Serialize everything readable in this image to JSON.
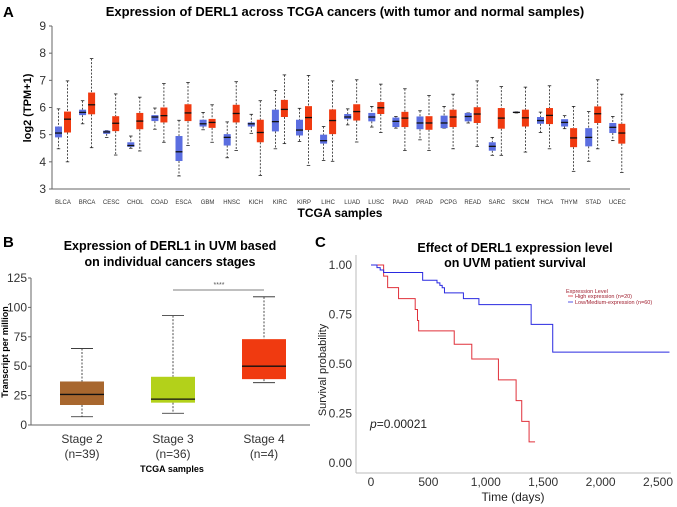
{
  "panel_labels": {
    "a": "A",
    "b": "B",
    "c": "C"
  },
  "chart_data": [
    {
      "type": "box",
      "title": "Expression of DERL1 across TCGA cancers (with tumor and normal samples)",
      "xlabel": "TCGA samples",
      "ylabel": "log2 (TPM+1)",
      "ylim": [
        3,
        9
      ],
      "yticks": [
        3,
        4,
        5,
        6,
        7,
        8,
        9
      ],
      "colors": {
        "normal": "#5b6ee0",
        "tumor": "#f03a10"
      },
      "box_stats_order": [
        "min",
        "q1",
        "median",
        "q3",
        "max"
      ],
      "categories": [
        "BLCA",
        "BRCA",
        "CESC",
        "CHOL",
        "COAD",
        "ESCA",
        "GBM",
        "HNSC",
        "KICH",
        "KIRC",
        "KIRP",
        "LIHC",
        "LUAD",
        "LUSC",
        "PAAD",
        "PRAD",
        "PCPG",
        "READ",
        "SARC",
        "SKCM",
        "THCA",
        "THYM",
        "STAD",
        "UCEC"
      ],
      "normal": [
        [
          4.48,
          4.9,
          5.06,
          5.3,
          5.95
        ],
        [
          5.4,
          5.72,
          5.82,
          5.92,
          6.25
        ],
        [
          4.9,
          5.03,
          5.1,
          5.15,
          5.15
        ],
        [
          4.5,
          4.55,
          4.6,
          4.72,
          4.95
        ],
        [
          5.2,
          5.5,
          5.65,
          5.72,
          5.98
        ],
        [
          3.48,
          4.03,
          4.37,
          4.95,
          5.53
        ],
        [
          5.18,
          5.3,
          5.4,
          5.55,
          5.82
        ],
        [
          4.15,
          4.6,
          4.9,
          5.02,
          5.47
        ],
        [
          5.05,
          5.3,
          5.4,
          5.45,
          5.75
        ],
        [
          4.48,
          5.12,
          5.48,
          5.92,
          6.62
        ],
        [
          4.75,
          4.97,
          5.17,
          5.55,
          5.97
        ],
        [
          4.05,
          4.67,
          4.78,
          5.0,
          5.3
        ],
        [
          5.36,
          5.57,
          5.65,
          5.76,
          5.95
        ],
        [
          5.28,
          5.49,
          5.65,
          5.8,
          6.04
        ],
        [
          5.24,
          5.28,
          5.49,
          5.63,
          5.67
        ],
        [
          4.81,
          5.2,
          5.43,
          5.67,
          5.88
        ],
        [
          5.24,
          5.24,
          5.43,
          5.7,
          6.04
        ],
        [
          5.43,
          5.49,
          5.67,
          5.8,
          5.8
        ],
        [
          4.24,
          4.41,
          4.57,
          4.72,
          4.9
        ],
        [
          5.8,
          5.8,
          5.82,
          5.84,
          5.84
        ],
        [
          5.08,
          5.4,
          5.52,
          5.65,
          5.83
        ],
        [
          5.22,
          5.3,
          5.45,
          5.57,
          5.7
        ],
        [
          4.02,
          4.57,
          4.9,
          5.24,
          5.85
        ],
        [
          4.78,
          5.06,
          5.27,
          5.43,
          5.67
        ]
      ],
      "tumor": [
        [
          4.0,
          5.08,
          5.57,
          5.85,
          6.98
        ],
        [
          4.52,
          5.75,
          6.1,
          6.55,
          7.8
        ],
        [
          4.25,
          5.13,
          5.42,
          5.68,
          6.5
        ],
        [
          4.4,
          5.2,
          5.5,
          5.8,
          6.38
        ],
        [
          4.72,
          5.45,
          5.7,
          6.0,
          6.88
        ],
        [
          4.6,
          5.5,
          5.8,
          6.12,
          6.92
        ],
        [
          4.72,
          5.25,
          5.45,
          5.58,
          6.1
        ],
        [
          4.42,
          5.45,
          5.78,
          6.1,
          6.95
        ],
        [
          3.5,
          4.72,
          5.08,
          5.55,
          6.25
        ],
        [
          4.67,
          5.65,
          5.93,
          6.28,
          7.2
        ],
        [
          3.87,
          5.17,
          5.63,
          6.05,
          7.18
        ],
        [
          4.02,
          5.02,
          5.52,
          5.93,
          6.98
        ],
        [
          4.73,
          5.52,
          5.85,
          6.12,
          7.02
        ],
        [
          5.08,
          5.76,
          5.99,
          6.2,
          6.86
        ],
        [
          4.42,
          5.28,
          5.61,
          5.84,
          6.69
        ],
        [
          4.42,
          5.18,
          5.43,
          5.68,
          6.44
        ],
        [
          4.48,
          5.28,
          5.65,
          5.92,
          6.49
        ],
        [
          4.57,
          5.43,
          5.76,
          6.01,
          6.98
        ],
        [
          4.24,
          5.22,
          5.61,
          5.98,
          6.77
        ],
        [
          4.36,
          5.3,
          5.62,
          5.92,
          6.75
        ],
        [
          4.48,
          5.39,
          5.71,
          5.98,
          6.8
        ],
        [
          3.65,
          4.54,
          4.88,
          5.24,
          6.04
        ],
        [
          4.48,
          5.43,
          5.77,
          6.04,
          7.02
        ],
        [
          3.61,
          4.67,
          5.06,
          5.4,
          6.49
        ]
      ]
    },
    {
      "type": "box",
      "title": [
        "Expression of DERL1 in UVM based",
        "on individual cancers stages"
      ],
      "xlabel": "TCGA samples",
      "ylabel": "Transcript per million",
      "ylim": [
        0,
        125
      ],
      "yticks": [
        0,
        25,
        50,
        75,
        100,
        125
      ],
      "box_stats_order": [
        "min",
        "q1",
        "median",
        "q3",
        "max"
      ],
      "categories": [
        {
          "label": "Stage 2",
          "n": "(n=39)",
          "color": "#a8672e",
          "stats": [
            7,
            17,
            26,
            37,
            65
          ]
        },
        {
          "label": "Stage 3",
          "n": "(n=36)",
          "color": "#b3d11a",
          "stats": [
            10,
            19,
            22,
            41,
            93
          ]
        },
        {
          "label": "Stage 4",
          "n": "(n=4)",
          "color": "#f03a10",
          "stats": [
            36,
            39,
            50,
            73,
            109
          ]
        }
      ],
      "significance": {
        "between": [
          "Stage 3",
          "Stage 4"
        ],
        "label": "****"
      }
    },
    {
      "type": "line",
      "subtype": "kaplan-meier",
      "title": [
        "Effect of DERL1 expression level",
        "on UVM patient survival"
      ],
      "xlabel": "Time (days)",
      "ylabel": "Survival probability",
      "xlim": [
        0,
        2600
      ],
      "ylim": [
        0,
        1
      ],
      "xticks": [
        "0",
        "500",
        "1,000",
        "1,500",
        "2,000",
        "2,500"
      ],
      "xtick_values": [
        0,
        500,
        1000,
        1500,
        2000,
        2500
      ],
      "yticks": [
        "0.00",
        "0.25",
        "0.50",
        "0.75",
        "1.00"
      ],
      "ytick_values": [
        0,
        0.25,
        0.5,
        0.75,
        1
      ],
      "legend_title": "Expression Level",
      "annotation": {
        "italic": "p",
        "text": "=0.00021"
      },
      "series": [
        {
          "name": "High expression (n=20)",
          "color": "#e0303a",
          "steps": [
            [
              0,
              1.0
            ],
            [
              110,
              0.944
            ],
            [
              145,
              0.886
            ],
            [
              240,
              0.83
            ],
            [
              385,
              0.775
            ],
            [
              405,
              0.72
            ],
            [
              415,
              0.667
            ],
            [
              725,
              0.6
            ],
            [
              878,
              0.525
            ],
            [
              1110,
              0.42
            ],
            [
              1264,
              0.315
            ],
            [
              1313,
              0.21
            ],
            [
              1377,
              0.107
            ],
            [
              1429,
              0.107
            ]
          ]
        },
        {
          "name": "Low/Medium-expression (n=60)",
          "color": "#2a2ae0",
          "steps": [
            [
              0,
              1.0
            ],
            [
              52,
              0.987
            ],
            [
              80,
              0.975
            ],
            [
              110,
              0.962
            ],
            [
              450,
              0.923
            ],
            [
              575,
              0.91
            ],
            [
              600,
              0.897
            ],
            [
              620,
              0.885
            ],
            [
              640,
              0.859
            ],
            [
              805,
              0.83
            ],
            [
              940,
              0.8
            ],
            [
              1395,
              0.7
            ],
            [
              1583,
              0.56
            ],
            [
              2600,
              0.56
            ]
          ]
        }
      ]
    }
  ]
}
